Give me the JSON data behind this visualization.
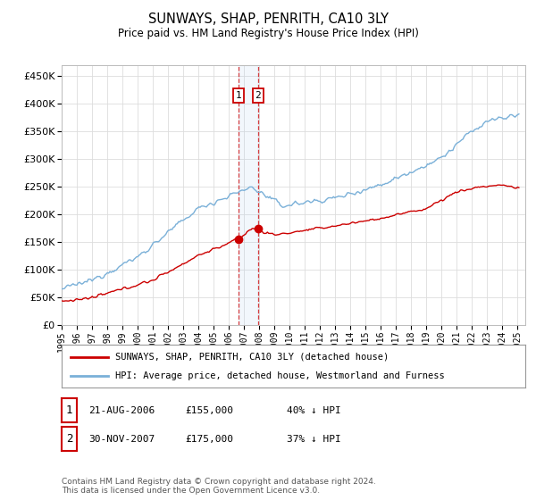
{
  "title": "SUNWAYS, SHAP, PENRITH, CA10 3LY",
  "subtitle": "Price paid vs. HM Land Registry's House Price Index (HPI)",
  "ytick_values": [
    0,
    50000,
    100000,
    150000,
    200000,
    250000,
    300000,
    350000,
    400000,
    450000
  ],
  "ylim": [
    0,
    470000
  ],
  "xlim_start": 1995.0,
  "xlim_end": 2025.5,
  "hpi_color": "#7ab0d8",
  "price_color": "#cc0000",
  "sale1_date": 2006.64,
  "sale1_price": 155000,
  "sale2_date": 2007.92,
  "sale2_price": 175000,
  "legend_line1": "SUNWAYS, SHAP, PENRITH, CA10 3LY (detached house)",
  "legend_line2": "HPI: Average price, detached house, Westmorland and Furness",
  "note1_num": "1",
  "note1_date": "21-AUG-2006",
  "note1_price": "£155,000",
  "note1_pct": "40% ↓ HPI",
  "note2_num": "2",
  "note2_date": "30-NOV-2007",
  "note2_price": "£175,000",
  "note2_pct": "37% ↓ HPI",
  "footer": "Contains HM Land Registry data © Crown copyright and database right 2024.\nThis data is licensed under the Open Government Licence v3.0.",
  "background_color": "#ffffff",
  "grid_color": "#dddddd"
}
